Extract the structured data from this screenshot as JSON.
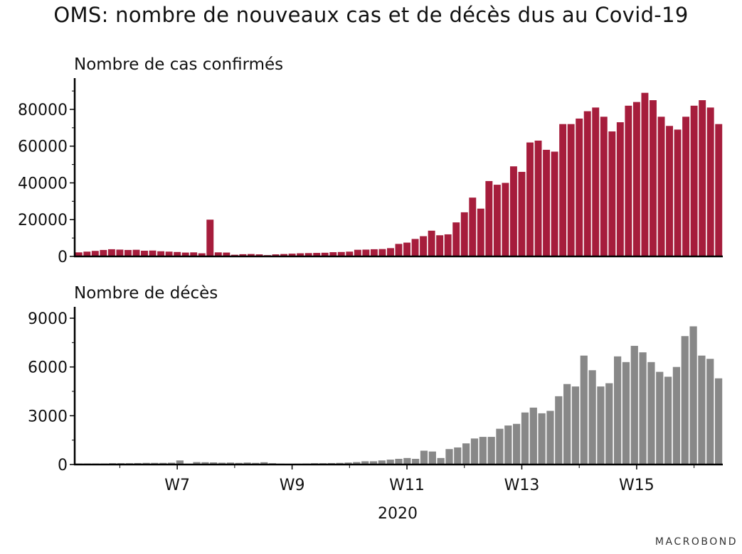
{
  "title": "OMS: nombre de nouveaux cas et de décès dus au Covid-19",
  "watermark": "MACROBOND",
  "colors": {
    "cases": "#a61d3c",
    "deaths": "#888888",
    "axis": "#000000"
  },
  "chart_data": [
    {
      "type": "bar",
      "title": "Nombre de cas confirmés",
      "x_axis_label": "2020",
      "x_tick_labels": [
        "W7",
        "W9",
        "W11",
        "W13",
        "W15"
      ],
      "y_ticks": [
        0,
        20000,
        40000,
        60000,
        80000
      ],
      "ylim": [
        0,
        97000
      ],
      "grid": false,
      "values": [
        2200,
        2600,
        3000,
        3500,
        3900,
        3700,
        3500,
        3600,
        3100,
        3200,
        2800,
        2600,
        2400,
        2100,
        2200,
        1700,
        20000,
        2200,
        2100,
        900,
        1200,
        1300,
        1100,
        700,
        1100,
        1300,
        1500,
        1700,
        1800,
        1900,
        2000,
        2300,
        2400,
        2600,
        3600,
        3700,
        3900,
        4000,
        4500,
        6800,
        7500,
        9500,
        11000,
        14000,
        11500,
        12000,
        18500,
        24000,
        32000,
        26000,
        41000,
        39000,
        40000,
        49000,
        46000,
        62000,
        63000,
        58000,
        57000,
        72000,
        72000,
        75000,
        79000,
        81000,
        76000,
        68000,
        73000,
        82000,
        84000,
        89000,
        85000,
        76000,
        71000,
        69000,
        76000,
        82000,
        85000,
        81000,
        72000
      ]
    },
    {
      "type": "bar",
      "title": "Nombre de décès",
      "x_axis_label": "2020",
      "x_tick_labels": [
        "W7",
        "W9",
        "W11",
        "W13",
        "W15"
      ],
      "y_ticks": [
        0,
        3000,
        6000,
        9000
      ],
      "ylim": [
        0,
        9700
      ],
      "grid": false,
      "values": [
        60,
        60,
        60,
        60,
        80,
        80,
        80,
        90,
        100,
        100,
        100,
        110,
        250,
        50,
        150,
        140,
        130,
        110,
        120,
        100,
        120,
        100,
        140,
        80,
        50,
        40,
        50,
        60,
        80,
        80,
        90,
        100,
        120,
        150,
        200,
        200,
        250,
        300,
        350,
        400,
        350,
        850,
        800,
        400,
        950,
        1050,
        1300,
        1600,
        1700,
        1700,
        2200,
        2400,
        2500,
        3200,
        3500,
        3150,
        3300,
        4200,
        4950,
        4800,
        6700,
        5800,
        4800,
        5000,
        6650,
        6300,
        7300,
        6900,
        6300,
        5700,
        5400,
        6000,
        7900,
        8500,
        6700,
        6500,
        5300
      ]
    }
  ]
}
